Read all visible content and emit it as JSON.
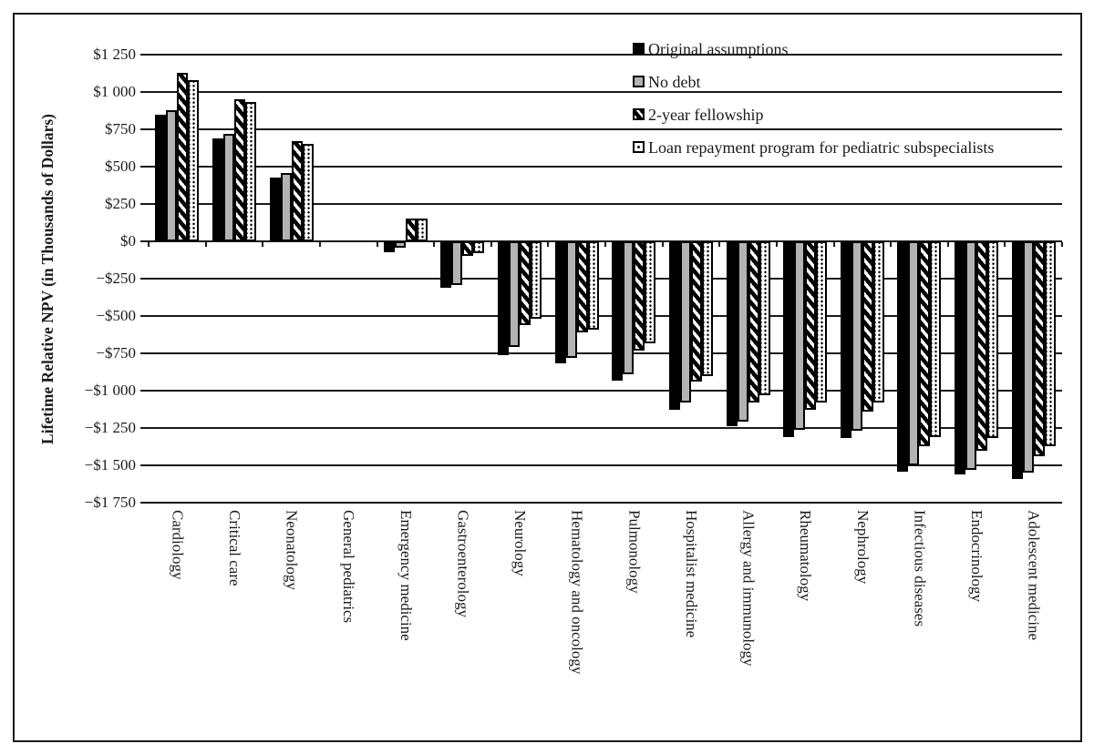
{
  "colors": {
    "axis": "#1a1a1a",
    "bar_black": "#000000",
    "bar_gray": "#b3b3b3",
    "bar_white": "#ffffff",
    "background": "#ffffff"
  },
  "legend": {
    "items": [
      {
        "label": "Original assumptions",
        "style": "solid-black"
      },
      {
        "label": "No debt",
        "style": "gray"
      },
      {
        "label": "2-year fellowship",
        "style": "diagonal-hatch"
      },
      {
        "label": "Loan repayment program for pediatric subspecialists",
        "style": "dotted"
      }
    ]
  },
  "chart_data": {
    "type": "bar",
    "title": "",
    "xlabel": "",
    "ylabel": "Lifetime Relative NPV (in Thousands of Dollars)",
    "ylim": [
      -1750,
      1250
    ],
    "ytick_step": 250,
    "ytick_labels": [
      "$1 250",
      "$1 000",
      "$750",
      "$500",
      "$250",
      "$0",
      "−$250",
      "−$500",
      "−$750",
      "−$1 000",
      "−$1 250",
      "−$1 500",
      "−$1 750"
    ],
    "grid": true,
    "legend_position": "top-right",
    "categories": [
      "Cardiology",
      "Critical care",
      "Neonatology",
      "General pediatrics",
      "Emergency medicine",
      "Gastroenterology",
      "Neurology",
      "Hematology and oncology",
      "Pulmonology",
      "Hospitalist medicine",
      "Allergy and immunology",
      "Rheumatology",
      "Nephrology",
      "Infectious diseases",
      "Endocrinology",
      "Adolescent medicine"
    ],
    "series": [
      {
        "name": "Original assumptions",
        "values": [
          850,
          690,
          425,
          0,
          -75,
          -310,
          -760,
          -820,
          -930,
          -1130,
          -1240,
          -1310,
          -1320,
          -1540,
          -1560,
          -1590
        ]
      },
      {
        "name": "No debt",
        "values": [
          880,
          720,
          455,
          0,
          -40,
          -290,
          -710,
          -780,
          -890,
          -1080,
          -1210,
          -1260,
          -1270,
          -1500,
          -1530,
          -1550
        ]
      },
      {
        "name": "2-year fellowship",
        "values": [
          1130,
          950,
          670,
          0,
          150,
          -95,
          -560,
          -610,
          -730,
          -940,
          -1080,
          -1130,
          -1140,
          -1370,
          -1400,
          -1440
        ]
      },
      {
        "name": "Loan repayment program for pediatric subspecialists",
        "values": [
          1080,
          930,
          650,
          0,
          155,
          -80,
          -520,
          -590,
          -680,
          -900,
          -1030,
          -1080,
          -1080,
          -1310,
          -1320,
          -1370
        ]
      }
    ]
  }
}
